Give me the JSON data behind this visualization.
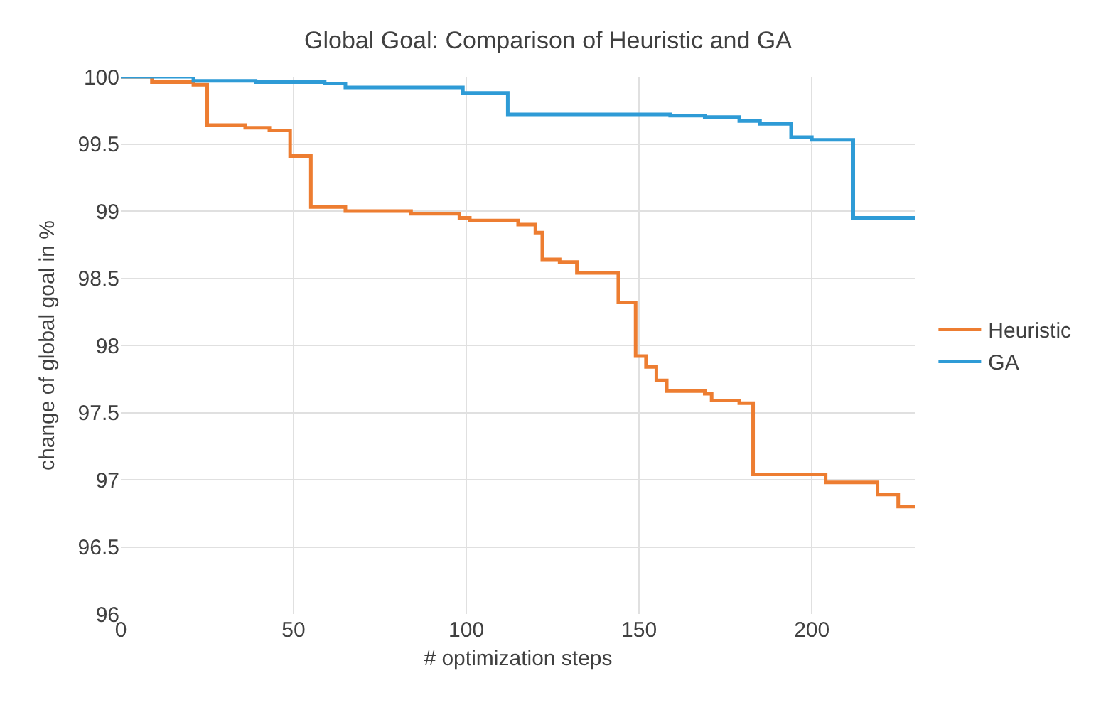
{
  "chart_data": {
    "type": "step",
    "title": "Global Goal: Comparison of Heuristic and GA",
    "xlabel": "# optimization steps",
    "ylabel": "change of global goal in %",
    "xlim": [
      0,
      230
    ],
    "xticks": [
      0,
      50,
      100,
      150,
      200
    ],
    "ylim": [
      96,
      100
    ],
    "yticks": [
      96,
      96.5,
      97,
      97.5,
      98,
      98.5,
      99,
      99.5,
      100
    ],
    "grid": true,
    "legend": "right",
    "marker": "none",
    "line_style": "solid",
    "series": [
      {
        "name": "Heuristic",
        "color": "#ed7d31",
        "x": [
          0,
          9,
          21,
          25,
          36,
          43,
          49,
          55,
          65,
          84,
          98,
          101,
          115,
          120,
          122,
          127,
          132,
          144,
          149,
          152,
          155,
          158,
          169,
          171,
          179,
          183,
          204,
          219,
          225,
          230
        ],
        "values": [
          100,
          99.96,
          99.94,
          99.64,
          99.62,
          99.6,
          99.41,
          99.03,
          99,
          98.98,
          98.95,
          98.93,
          98.9,
          98.84,
          98.64,
          98.62,
          98.54,
          98.32,
          97.92,
          97.84,
          97.74,
          97.66,
          97.64,
          97.59,
          97.57,
          97.04,
          96.98,
          96.89,
          96.8,
          96.8
        ]
      },
      {
        "name": "GA",
        "color": "#2e9bd6",
        "x": [
          0,
          21,
          39,
          59,
          65,
          99,
          112,
          159,
          169,
          179,
          185,
          194,
          200,
          212,
          230
        ],
        "values": [
          100,
          99.97,
          99.96,
          99.95,
          99.92,
          99.88,
          99.72,
          99.71,
          99.7,
          99.67,
          99.65,
          99.55,
          99.53,
          98.95,
          98.95
        ]
      }
    ]
  }
}
